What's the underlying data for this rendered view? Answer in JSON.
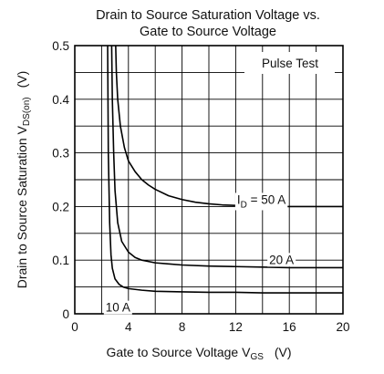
{
  "chart_data": {
    "type": "line",
    "title_lines": [
      "Drain to Source Saturation Voltage vs.",
      "Gate to Source Voltage"
    ],
    "xlabel": {
      "main": "Gate to Source Voltage  V",
      "sub": "GS",
      "unit": "(V)"
    },
    "ylabel": {
      "main": "Drain to Source Saturation  V",
      "sub": "DS(on)",
      "unit": "(V)"
    },
    "xlim": [
      0,
      20
    ],
    "ylim": [
      0,
      0.5
    ],
    "xticks": [
      0,
      4,
      8,
      12,
      16,
      20
    ],
    "xtick_labels": [
      "0",
      "4",
      "8",
      "12",
      "16",
      "20"
    ],
    "yticks": [
      0,
      0.1,
      0.2,
      0.3,
      0.4,
      0.5
    ],
    "ytick_labels": [
      "0",
      "0.1",
      "0.2",
      "0.3",
      "0.4",
      "0.5"
    ],
    "grid": true,
    "annotation": "Pulse Test",
    "series": [
      {
        "name": "I_D = 50 A",
        "label_main": "I",
        "label_sub": "D",
        "label_rest": " = 50 A",
        "label_anchor": [
          12.1,
          0.205
        ],
        "x": [
          3.05,
          3.1,
          3.2,
          3.4,
          3.7,
          4.0,
          4.5,
          5.0,
          5.5,
          6.0,
          7.0,
          8.0,
          9.0,
          10.0,
          11.0,
          12.0,
          14.0,
          16.0,
          18.0,
          20.0
        ],
        "y": [
          0.5,
          0.45,
          0.4,
          0.35,
          0.31,
          0.285,
          0.265,
          0.25,
          0.24,
          0.232,
          0.22,
          0.213,
          0.208,
          0.205,
          0.203,
          0.202,
          0.201,
          0.2,
          0.2,
          0.2
        ]
      },
      {
        "name": "20 A",
        "label_main": "20 A",
        "label_anchor": [
          14.5,
          0.093
        ],
        "x": [
          2.75,
          2.8,
          2.9,
          3.0,
          3.2,
          3.5,
          4.0,
          4.5,
          5.0,
          6.0,
          7.0,
          8.0,
          10.0,
          12.0,
          14.0,
          16.0,
          18.0,
          20.0
        ],
        "y": [
          0.5,
          0.4,
          0.3,
          0.23,
          0.17,
          0.135,
          0.115,
          0.105,
          0.1,
          0.095,
          0.093,
          0.091,
          0.089,
          0.088,
          0.087,
          0.086,
          0.086,
          0.086
        ]
      },
      {
        "name": "10 A",
        "label_main": "10 A",
        "label_anchor": [
          2.3,
          0.004
        ],
        "x": [
          2.45,
          2.5,
          2.6,
          2.7,
          2.8,
          3.0,
          3.3,
          3.6,
          4.0,
          5.0,
          6.0,
          8.0,
          10.0,
          12.0,
          14.0,
          16.0,
          18.0,
          20.0
        ],
        "y": [
          0.5,
          0.3,
          0.17,
          0.11,
          0.085,
          0.065,
          0.055,
          0.05,
          0.047,
          0.044,
          0.042,
          0.041,
          0.04,
          0.04,
          0.039,
          0.039,
          0.039,
          0.039
        ]
      }
    ]
  }
}
